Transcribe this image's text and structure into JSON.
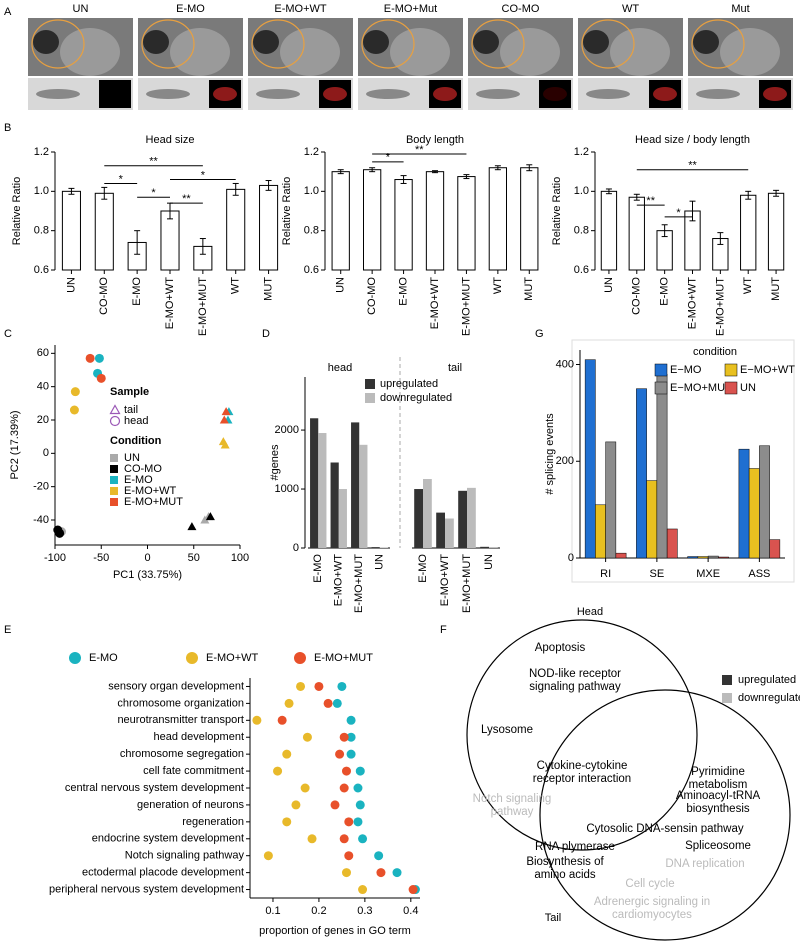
{
  "panel_labels": [
    "A",
    "B",
    "C",
    "D",
    "E",
    "F",
    "G"
  ],
  "images": [
    "UN",
    "E-MO",
    "E-MO+WT",
    "E-MO+Mut",
    "CO-MO",
    "WT",
    "Mut"
  ],
  "chart_data": [
    {
      "type": "bar",
      "title": "Head size",
      "ylabel": "Relative Ratio",
      "categories": [
        "UN",
        "CO-MO",
        "E-MO",
        "E-MO+WT",
        "E-MO+MUT",
        "WT",
        "MUT"
      ],
      "values": [
        1.0,
        0.99,
        0.74,
        0.9,
        0.72,
        1.01,
        1.03
      ],
      "errors": [
        0.015,
        0.03,
        0.06,
        0.04,
        0.04,
        0.03,
        0.025
      ],
      "color": "#ffffff",
      "ylim": [
        0.6,
        1.2
      ],
      "yticks": [
        0.6,
        0.8,
        {
          "value": 1,
          "label": "1.0"
        },
        1.2
      ],
      "annotations": [
        {
          "label": "**",
          "from": 1,
          "to": 4,
          "y": 1.13
        },
        {
          "label": "*",
          "from": 1,
          "to": 2,
          "y": 1.04
        },
        {
          "label": "*",
          "from": 2,
          "to": 3,
          "y": 0.97
        },
        {
          "label": "*",
          "from": 3,
          "to": 5,
          "y": 1.06
        },
        {
          "label": "**",
          "from": 3,
          "to": 4,
          "y": 0.94
        }
      ]
    },
    {
      "type": "bar",
      "title": "Body length",
      "ylabel": "Relative Ratio",
      "categories": [
        "UN",
        "CO-MO",
        "E-MO",
        "E-MO+WT",
        "E-MO+MUT",
        "WT",
        "MUT"
      ],
      "values": [
        1.1,
        1.11,
        1.06,
        1.1,
        1.075,
        1.12,
        1.12
      ],
      "errors": [
        0.01,
        0.01,
        0.02,
        0.005,
        0.01,
        0.01,
        0.015
      ],
      "color": "#ffffff",
      "ylim": [
        0.6,
        1.2
      ],
      "yticks": [
        0.6,
        0.8,
        {
          "value": 1,
          "label": "1.0"
        },
        1.2
      ],
      "annotations": [
        {
          "label": "*",
          "from": 1,
          "to": 2,
          "y": 1.15
        },
        {
          "label": "**",
          "from": 1,
          "to": 4,
          "y": 1.19
        }
      ]
    },
    {
      "type": "bar",
      "title": "Head size / body length",
      "ylabel": "Relative Ratio",
      "categories": [
        "UN",
        "CO-MO",
        "E-MO",
        "E-MO+WT",
        "E-MO+MUT",
        "WT",
        "MUT"
      ],
      "values": [
        1.0,
        0.97,
        0.8,
        0.9,
        0.76,
        0.98,
        0.99
      ],
      "errors": [
        0.012,
        0.015,
        0.03,
        0.05,
        0.03,
        0.02,
        0.015
      ],
      "color": "#ffffff",
      "ylim": [
        0.6,
        1.2
      ],
      "yticks": [
        0.6,
        0.8,
        {
          "value": 1,
          "label": "1.0"
        },
        1.2
      ],
      "annotations": [
        {
          "label": "**",
          "from": 1,
          "to": 5,
          "y": 1.11
        },
        {
          "label": "**",
          "from": 1,
          "to": 2,
          "y": 0.93
        },
        {
          "label": "*",
          "from": 2,
          "to": 3,
          "y": 0.87
        }
      ]
    },
    {
      "type": "scatter",
      "xlabel": "PC1 (33.75%)",
      "ylabel": "PC2 (17.39%)",
      "xlim": [
        -100,
        100
      ],
      "xticks": [
        -100,
        -50,
        0,
        50,
        100
      ],
      "ylim": [
        -55,
        65
      ],
      "yticks": [
        -40,
        -20,
        0,
        20,
        40,
        60
      ],
      "sample_legend": {
        "title": "Sample",
        "color": "#9b59b6",
        "items": [
          {
            "label": "tail",
            "marker": "triangle"
          },
          {
            "label": "head",
            "marker": "circle"
          }
        ]
      },
      "condition_legend_title": "Condition",
      "series": [
        {
          "name": "UN",
          "color": "#aaaaaa",
          "x": [
            -93,
            62,
            66
          ],
          "y": [
            -47,
            -40,
            -38
          ],
          "sample": [
            "head",
            "tail",
            "tail"
          ]
        },
        {
          "name": "CO-MO",
          "color": "#000000",
          "x": [
            -97,
            -95,
            48,
            68
          ],
          "y": [
            -46,
            -48,
            -44,
            -38
          ],
          "sample": [
            "head",
            "head",
            "tail",
            "tail"
          ]
        },
        {
          "name": "E-MO",
          "color": "#1ab3c0",
          "x": [
            -52,
            -54,
            88,
            87
          ],
          "y": [
            57,
            48,
            25,
            20
          ],
          "sample": [
            "head",
            "head",
            "tail",
            "tail"
          ]
        },
        {
          "name": "E-MO+WT",
          "color": "#e8b92a",
          "x": [
            -78,
            -79,
            82,
            84
          ],
          "y": [
            37,
            26,
            7,
            5
          ],
          "sample": [
            "head",
            "head",
            "tail",
            "tail"
          ]
        },
        {
          "name": "E-MO+MUT",
          "color": "#e8502a",
          "x": [
            -62,
            -50,
            85,
            83
          ],
          "y": [
            57,
            45,
            25,
            20
          ],
          "sample": [
            "head",
            "head",
            "tail",
            "tail"
          ]
        }
      ]
    },
    {
      "type": "faceted_bar",
      "ylabel": "#genes",
      "facets": [
        "head",
        "tail"
      ],
      "categories": [
        "E-MO",
        "E-MO+WT",
        "E-MO+MUT",
        "UN"
      ],
      "ylim": [
        0,
        2900
      ],
      "yticks": [
        0,
        1000,
        2000
      ],
      "series": [
        {
          "name": "upregulated",
          "color": "#333333",
          "values": [
            [
              2200,
              1450,
              2130,
              15
            ],
            [
              1000,
              600,
              970,
              20
            ]
          ]
        },
        {
          "name": "downregulated",
          "color": "#bbbbbb",
          "values": [
            [
              1950,
              1000,
              1750,
              10
            ],
            [
              1170,
              500,
              1020,
              15
            ]
          ]
        }
      ]
    },
    {
      "type": "grouped_bar",
      "ylabel": "# splicing events",
      "legend_title": "condition",
      "categories": [
        "RI",
        "SE",
        "MXE",
        "ASS"
      ],
      "ylim": [
        0,
        430
      ],
      "yticks": [
        0,
        200,
        400
      ],
      "series": [
        {
          "name": "E−MO",
          "color": "#1f6fd1",
          "values": [
            410,
            350,
            3,
            225
          ]
        },
        {
          "name": "E−MO+WT",
          "color": "#e8c020",
          "values": [
            110,
            160,
            3,
            185
          ]
        },
        {
          "name": "E−MO+MUT",
          "color": "#8c8c8c",
          "values": [
            240,
            380,
            4,
            232
          ]
        },
        {
          "name": "UN",
          "color": "#d9534f",
          "values": [
            10,
            60,
            2,
            38
          ]
        }
      ]
    },
    {
      "type": "dot",
      "xlabel": "proportion of genes in GO term",
      "categories": [
        "sensory organ development",
        "chromosome organization",
        "neurotransmitter transport",
        "head development",
        "chromosome segregation",
        "cell fate commitment",
        "central nervous system development",
        "generation of neurons",
        "regeneration",
        "endocrine system development",
        "Notch signaling pathway",
        "ectodermal placode development",
        "peripheral nervous system development"
      ],
      "xlim": [
        0.05,
        0.42
      ],
      "xticks": [
        0.1,
        0.2,
        0.3,
        0.4
      ],
      "series": [
        {
          "name": "E-MO",
          "color": "#1ab3c0",
          "values": [
            0.25,
            0.24,
            0.27,
            0.27,
            0.27,
            0.29,
            0.285,
            0.29,
            0.285,
            0.295,
            0.33,
            0.37,
            0.41
          ]
        },
        {
          "name": "E-MO+WT",
          "color": "#e8b92a",
          "values": [
            0.16,
            0.135,
            0.065,
            0.175,
            0.13,
            0.11,
            0.17,
            0.15,
            0.13,
            0.185,
            0.09,
            0.26,
            0.295
          ]
        },
        {
          "name": "E-MO+MUT",
          "color": "#e8502a",
          "values": [
            0.2,
            0.22,
            0.12,
            0.255,
            0.245,
            0.26,
            0.255,
            0.235,
            0.265,
            0.255,
            0.265,
            0.335,
            0.405
          ]
        }
      ]
    }
  ],
  "venn": {
    "head_label": "Head",
    "tail_label": "Tail",
    "legend": [
      {
        "label": "upregulated",
        "color": "#333333"
      },
      {
        "label": "downregulated",
        "color": "#bbbbbb"
      }
    ],
    "items": [
      {
        "text": "Apoptosis",
        "regulation": "upregulated"
      },
      {
        "text": "NOD-like receptor signaling pathway",
        "regulation": "upregulated"
      },
      {
        "text": "Lysosome",
        "regulation": "upregulated"
      },
      {
        "text": "Cytokine-cytokine receptor interaction",
        "regulation": "upregulated"
      },
      {
        "text": "Notch signaling pathway",
        "regulation": "downregulated"
      },
      {
        "text": "Pyrimidine metabolism",
        "regulation": "upregulated"
      },
      {
        "text": "Aminoacyl-tRNA biosynthesis",
        "regulation": "upregulated"
      },
      {
        "text": "Cytosolic DNA-sensin pathway",
        "regulation": "upregulated"
      },
      {
        "text": "Spliceosome",
        "regulation": "upregulated"
      },
      {
        "text": "RNA plymerase",
        "regulation": "upregulated"
      },
      {
        "text": "Biosynthesis of amino acids",
        "regulation": "upregulated"
      },
      {
        "text": "DNA replication",
        "regulation": "downregulated"
      },
      {
        "text": "Cell cycle",
        "regulation": "downregulated"
      },
      {
        "text": "Adrenergic signaling in cardiomyocytes",
        "regulation": "downregulated"
      }
    ]
  }
}
